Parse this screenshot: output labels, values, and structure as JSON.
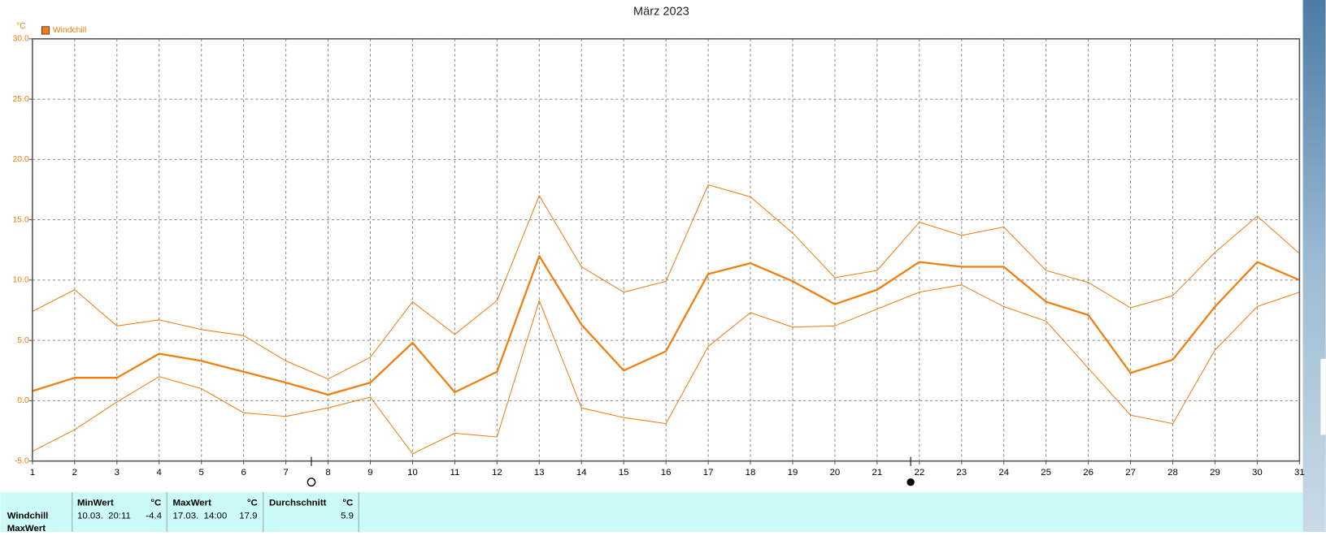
{
  "chart_data": {
    "type": "line",
    "title": "März 2023",
    "y_unit": "°C",
    "x": [
      1,
      2,
      3,
      4,
      5,
      6,
      7,
      8,
      9,
      10,
      11,
      12,
      13,
      14,
      15,
      16,
      17,
      18,
      19,
      20,
      21,
      22,
      23,
      24,
      25,
      26,
      27,
      28,
      29,
      30,
      31
    ],
    "xlim": [
      1,
      31
    ],
    "xticks": [
      1,
      2,
      3,
      4,
      5,
      6,
      7,
      8,
      9,
      10,
      11,
      12,
      13,
      14,
      15,
      16,
      17,
      18,
      19,
      20,
      21,
      22,
      23,
      24,
      25,
      26,
      27,
      28,
      29,
      30,
      31
    ],
    "ylim": [
      -5,
      30
    ],
    "yticks": [
      {
        "value": -5,
        "label": "-5.0"
      },
      {
        "value": 0,
        "label": "0.0"
      },
      {
        "value": 5,
        "label": "5.0"
      },
      {
        "value": 10,
        "label": "10.0"
      },
      {
        "value": 15,
        "label": "15.0"
      },
      {
        "value": 20,
        "label": "20.0"
      },
      {
        "value": 25,
        "label": "25.0"
      },
      {
        "value": 30,
        "label": "30.0"
      }
    ],
    "grid": true,
    "legend": "top-left",
    "series": [
      {
        "name": "Windchill",
        "color": "#f07f10",
        "line_width": 2.2,
        "values": [
          0.8,
          1.9,
          1.9,
          3.9,
          3.3,
          2.4,
          1.5,
          0.5,
          1.5,
          4.8,
          0.7,
          2.4,
          12.0,
          6.3,
          2.5,
          4.1,
          10.5,
          11.4,
          9.9,
          8.0,
          9.2,
          11.5,
          11.1,
          11.1,
          8.2,
          7.1,
          2.3,
          3.4,
          7.8,
          11.5,
          10.0
        ]
      },
      {
        "color": "#f07f10",
        "line_width": 1,
        "values": [
          7.4,
          9.2,
          6.2,
          6.7,
          5.9,
          5.4,
          3.3,
          1.8,
          3.6,
          8.2,
          5.5,
          8.3,
          17.0,
          11.1,
          9.0,
          9.9,
          17.9,
          16.9,
          13.9,
          10.2,
          10.8,
          14.8,
          13.7,
          14.4,
          10.8,
          9.8,
          7.7,
          8.7,
          12.3,
          15.3,
          12.2
        ]
      },
      {
        "color": "#f07f10",
        "line_width": 1,
        "values": [
          -4.2,
          -2.4,
          -0.1,
          2.0,
          1.0,
          -1.0,
          -1.3,
          -0.6,
          0.3,
          -4.4,
          -2.7,
          -3.0,
          8.3,
          -0.6,
          -1.4,
          -1.9,
          4.5,
          7.3,
          6.1,
          6.2,
          7.6,
          9.0,
          9.6,
          7.8,
          6.6,
          2.7,
          -1.2,
          -1.9,
          4.2,
          7.8,
          9.0
        ]
      }
    ]
  },
  "stats": {
    "headers": [
      "MinWert",
      "°C",
      "MaxWert",
      "°C",
      "Durchschnitt",
      "°C"
    ],
    "row_labels": [
      "Windchill",
      "MaxWert"
    ],
    "row": [
      "10.03.  20:11",
      "-4.4",
      "17.03.  14:00",
      "17.9",
      "5.9"
    ]
  }
}
